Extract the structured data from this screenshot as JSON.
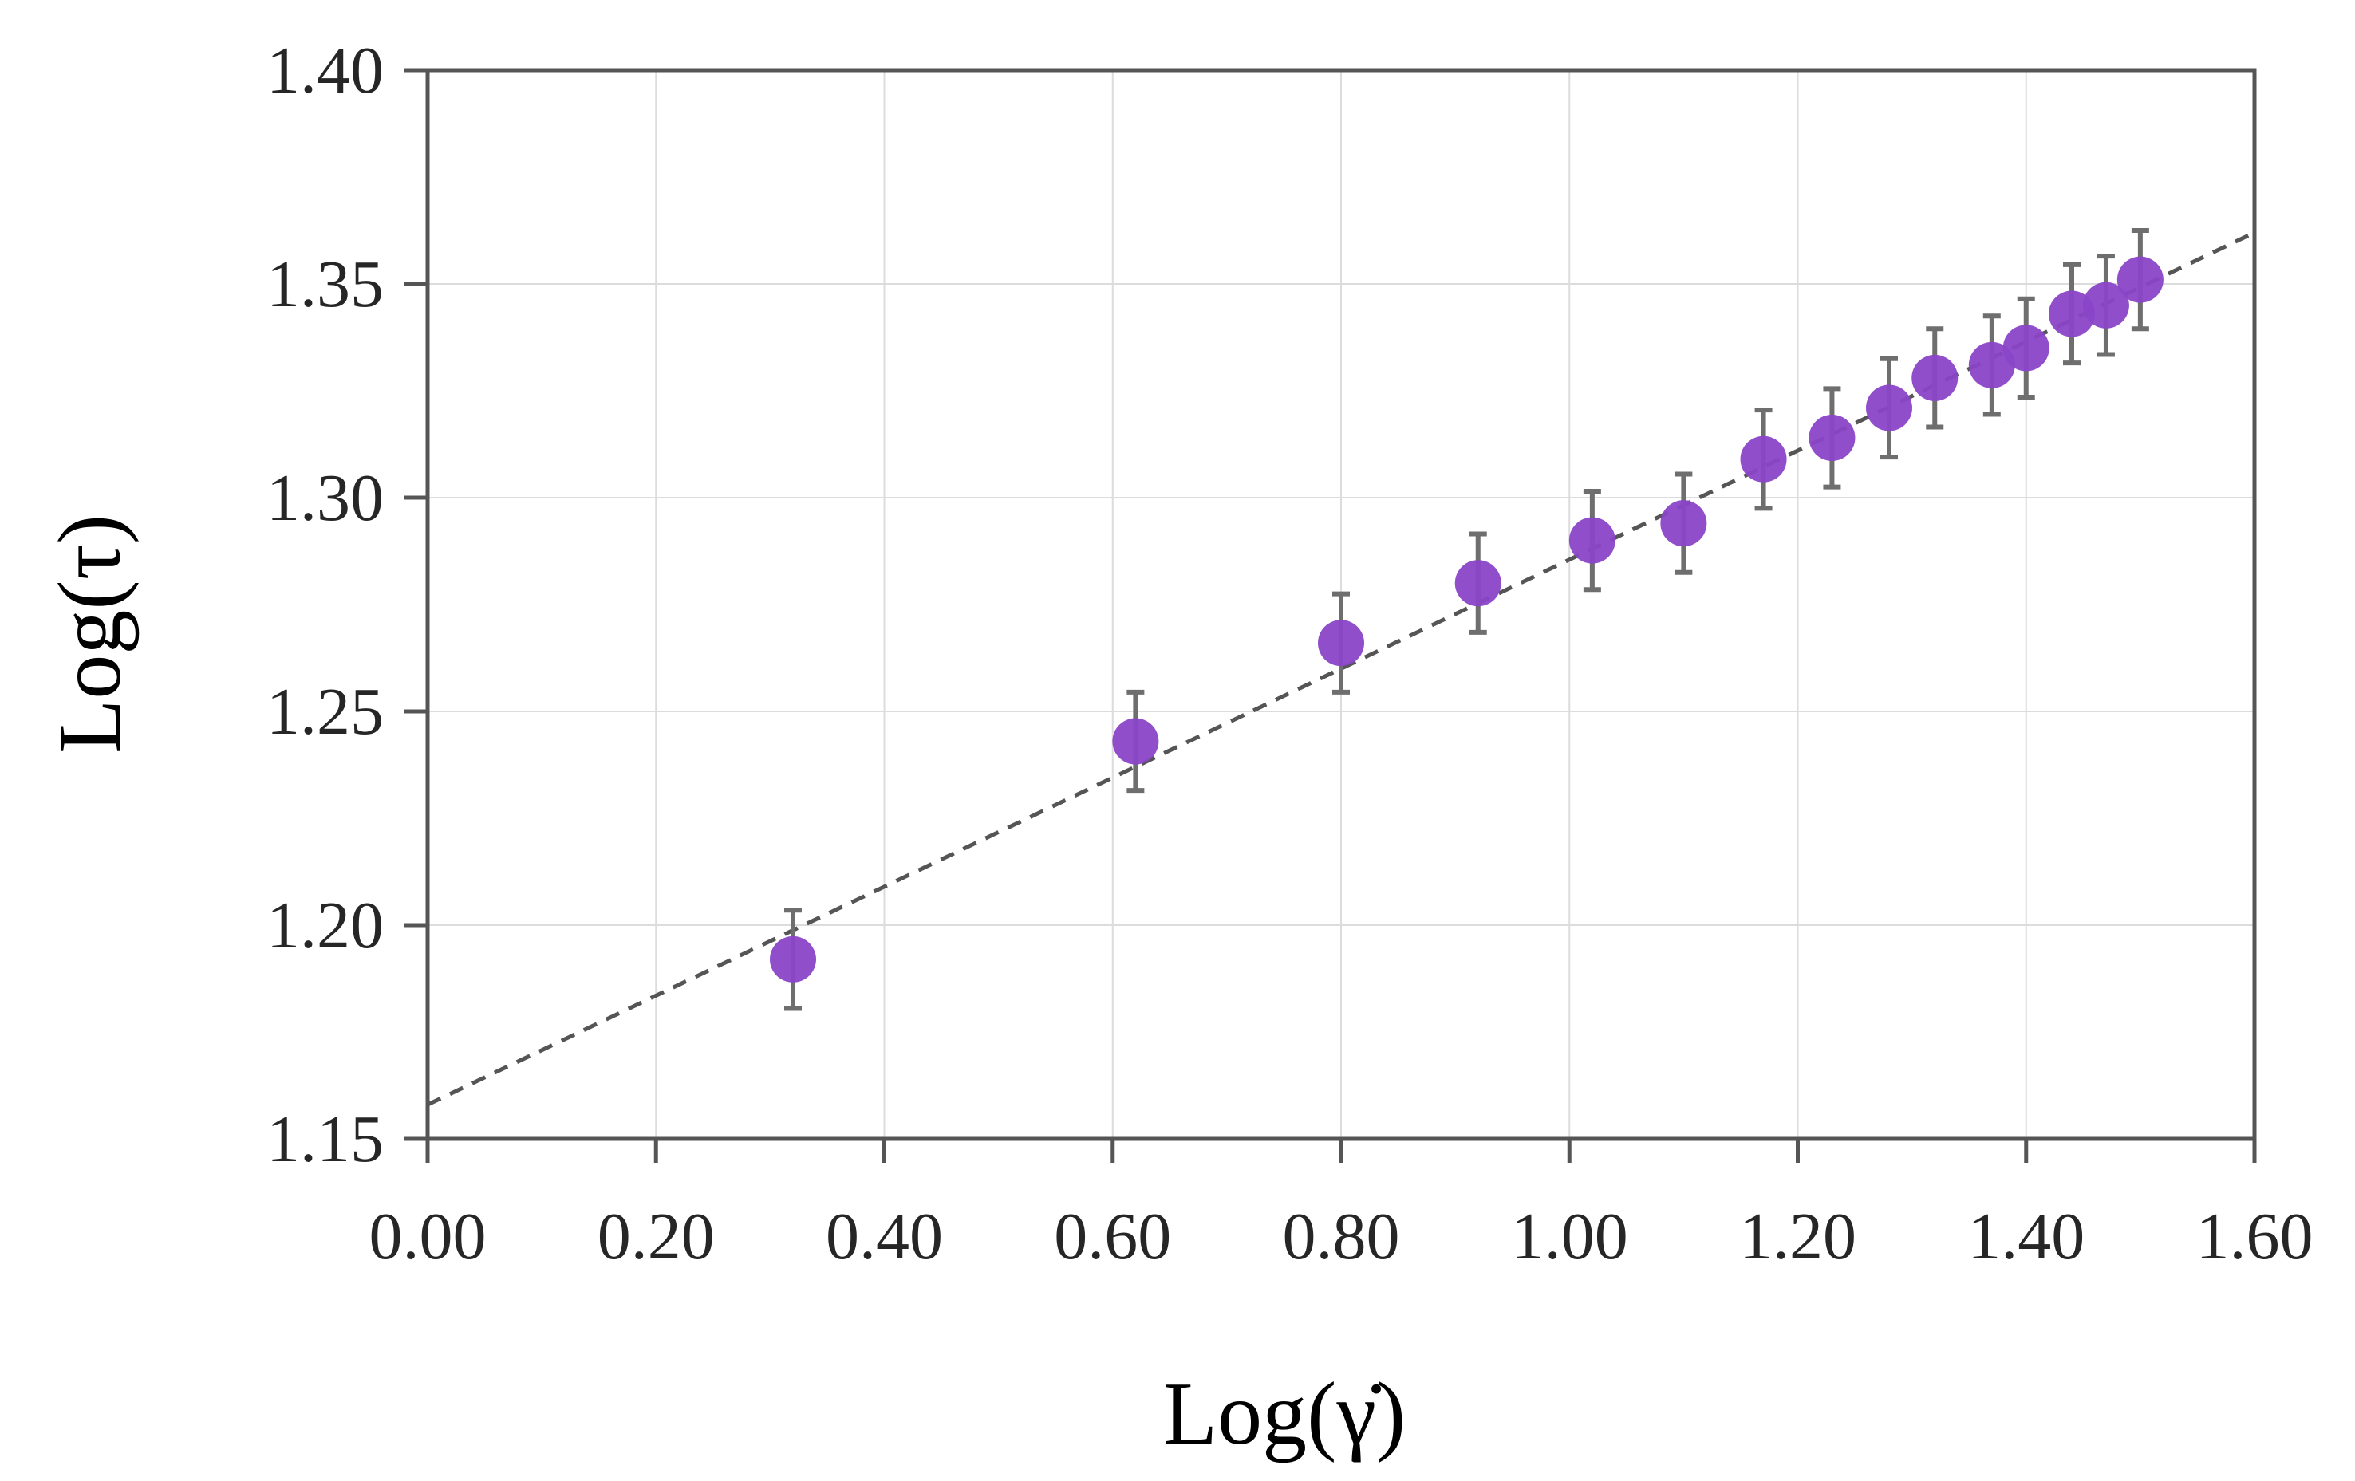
{
  "chart_data": {
    "type": "scatter",
    "title": "",
    "xlabel": "Log(γ̇)",
    "ylabel": "Log(τ)",
    "xlim": [
      0.0,
      1.6
    ],
    "ylim": [
      1.15,
      1.4
    ],
    "x_ticks": [
      "0.00",
      "0.20",
      "0.40",
      "0.60",
      "0.80",
      "1.00",
      "1.20",
      "1.40",
      "1.60"
    ],
    "y_ticks": [
      "1.15",
      "1.20",
      "1.25",
      "1.30",
      "1.35",
      "1.40"
    ],
    "grid": true,
    "legend": "none",
    "series": [
      {
        "type": "scatter",
        "color": "#8a45c8",
        "error_bar_color": "#6e6e6e",
        "error": 0.0115,
        "points": [
          {
            "x": 0.32,
            "y": 1.192
          },
          {
            "x": 0.62,
            "y": 1.243
          },
          {
            "x": 0.8,
            "y": 1.266
          },
          {
            "x": 0.92,
            "y": 1.28
          },
          {
            "x": 1.02,
            "y": 1.29
          },
          {
            "x": 1.1,
            "y": 1.294
          },
          {
            "x": 1.17,
            "y": 1.309
          },
          {
            "x": 1.23,
            "y": 1.314
          },
          {
            "x": 1.28,
            "y": 1.321
          },
          {
            "x": 1.32,
            "y": 1.328
          },
          {
            "x": 1.37,
            "y": 1.331
          },
          {
            "x": 1.4,
            "y": 1.335
          },
          {
            "x": 1.44,
            "y": 1.343
          },
          {
            "x": 1.47,
            "y": 1.345
          },
          {
            "x": 1.5,
            "y": 1.351
          }
        ]
      },
      {
        "type": "line",
        "style": "dashed",
        "color": "#555555",
        "x": [
          0.0,
          1.6
        ],
        "y": [
          1.158,
          1.362
        ]
      }
    ]
  }
}
